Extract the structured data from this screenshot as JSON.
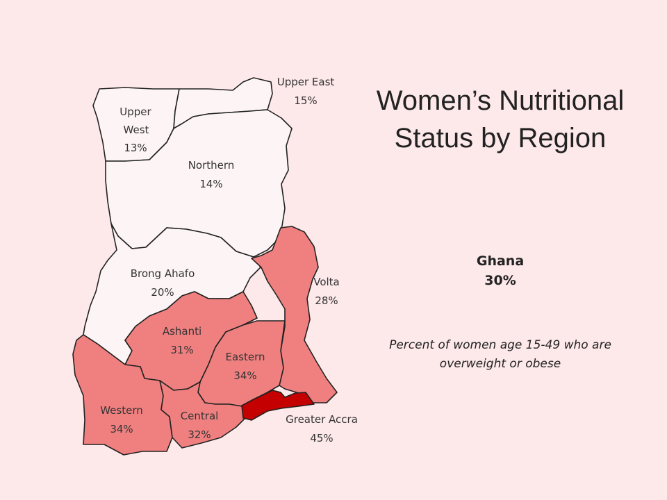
{
  "title": "Women’s Nutritional Status by Region",
  "national": {
    "name": "Ghana",
    "value": "30%"
  },
  "note": "Percent of women age 15-49 who are overweight or obese",
  "colors": {
    "low": "#fdf5f5",
    "mid": "#f08080",
    "high": "#c40000",
    "border": "#222222"
  },
  "regions": {
    "upper_east": {
      "name": "Upper East",
      "value": "15%",
      "pct": 15
    },
    "upper_west": {
      "name": "Upper",
      "name2": "West",
      "value": "13%",
      "pct": 13
    },
    "northern": {
      "name": "Northern",
      "value": "14%",
      "pct": 14
    },
    "brong_ahafo": {
      "name": "Brong Ahafo",
      "value": "20%",
      "pct": 20
    },
    "volta": {
      "name": "Volta",
      "value": "28%",
      "pct": 28
    },
    "ashanti": {
      "name": "Ashanti",
      "value": "31%",
      "pct": 31
    },
    "eastern": {
      "name": "Eastern",
      "value": "34%",
      "pct": 34
    },
    "western": {
      "name": "Western",
      "value": "34%",
      "pct": 34
    },
    "central": {
      "name": "Central",
      "value": "32%",
      "pct": 32
    },
    "greater_accra": {
      "name": "Greater Accra",
      "value": "45%",
      "pct": 45
    }
  }
}
